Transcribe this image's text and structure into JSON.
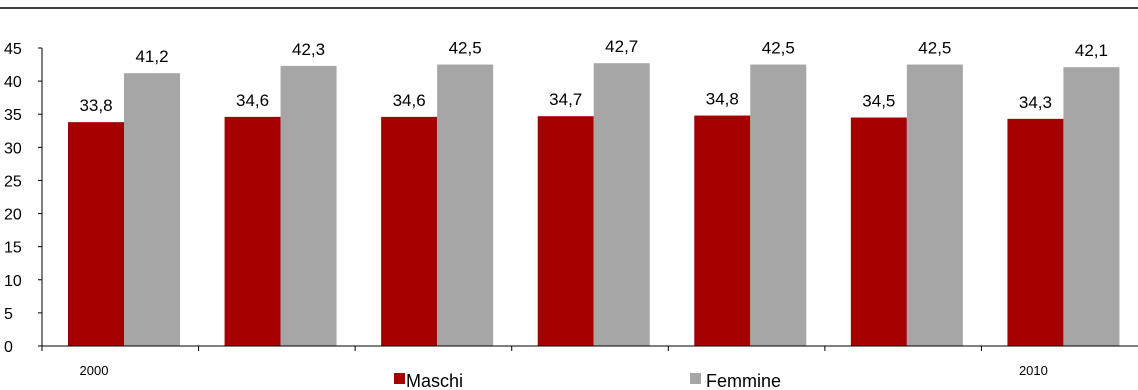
{
  "chart_data": {
    "type": "bar",
    "categories": [
      "2000",
      "",
      "",
      "",
      "",
      "",
      "2010"
    ],
    "series": [
      {
        "name": "Maschi",
        "values": [
          33.8,
          34.6,
          34.6,
          34.7,
          34.8,
          34.5,
          34.3
        ],
        "labels": [
          "33,8",
          "34,6",
          "34,6",
          "34,7",
          "34,8",
          "34,5",
          "34,3"
        ],
        "color": "#a50000"
      },
      {
        "name": "Femmine",
        "values": [
          41.2,
          42.3,
          42.5,
          42.7,
          42.5,
          42.5,
          42.1
        ],
        "labels": [
          "41,2",
          "42,3",
          "42,5",
          "42,7",
          "42,5",
          "42,5",
          "42,1"
        ],
        "color": "#a6a6a6"
      }
    ],
    "yticks": [
      0,
      5,
      10,
      15,
      20,
      25,
      30,
      35,
      40,
      45
    ],
    "ylim": [
      0,
      45
    ],
    "grid": false,
    "legend_position": "bottom-center"
  }
}
